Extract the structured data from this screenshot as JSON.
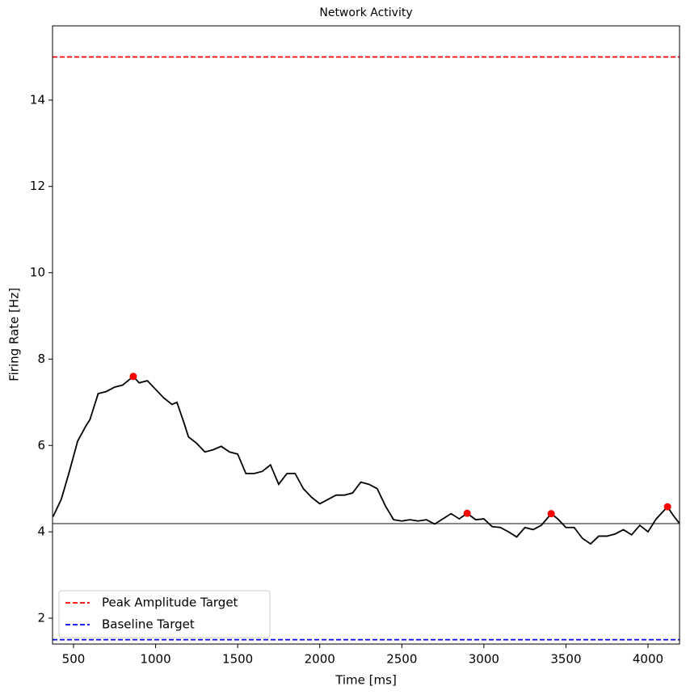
{
  "chart_data": {
    "type": "line",
    "title": "Network Activity",
    "x_label": "Time [ms]",
    "y_label": "Firing Rate [Hz]",
    "xlim": [
      372,
      4192
    ],
    "ylim": [
      1.4,
      15.72
    ],
    "xticks": [
      500,
      1000,
      1500,
      2000,
      2500,
      3000,
      3500,
      4000
    ],
    "yticks": [
      2,
      4,
      6,
      8,
      10,
      12,
      14
    ],
    "x": [
      375,
      425,
      475,
      525,
      575,
      600,
      650,
      700,
      750,
      800,
      864,
      900,
      950,
      1000,
      1050,
      1100,
      1130,
      1175,
      1200,
      1250,
      1300,
      1350,
      1400,
      1450,
      1500,
      1550,
      1600,
      1650,
      1700,
      1750,
      1800,
      1850,
      1900,
      1950,
      2000,
      2050,
      2100,
      2150,
      2200,
      2250,
      2300,
      2350,
      2400,
      2450,
      2500,
      2550,
      2600,
      2650,
      2700,
      2750,
      2800,
      2850,
      2898,
      2950,
      3000,
      3050,
      3100,
      3150,
      3200,
      3250,
      3300,
      3350,
      3410,
      3450,
      3500,
      3550,
      3600,
      3650,
      3700,
      3750,
      3800,
      3850,
      3900,
      3950,
      4000,
      4050,
      4119,
      4150,
      4190
    ],
    "series": [
      {
        "color": "#000000",
        "values": [
          4.35,
          4.75,
          5.4,
          6.1,
          6.45,
          6.6,
          7.2,
          7.25,
          7.35,
          7.4,
          7.6,
          7.45,
          7.5,
          7.3,
          7.1,
          6.95,
          7.0,
          6.5,
          6.2,
          6.05,
          5.85,
          5.9,
          5.98,
          5.85,
          5.8,
          5.35,
          5.35,
          5.4,
          5.55,
          5.1,
          5.35,
          5.35,
          5.0,
          4.8,
          4.65,
          4.75,
          4.85,
          4.85,
          4.9,
          5.15,
          5.1,
          5.0,
          4.6,
          4.28,
          4.25,
          4.28,
          4.25,
          4.28,
          4.18,
          4.3,
          4.42,
          4.3,
          4.43,
          4.28,
          4.3,
          4.12,
          4.1,
          4.0,
          3.88,
          4.1,
          4.05,
          4.15,
          4.42,
          4.3,
          4.1,
          4.1,
          3.85,
          3.72,
          3.9,
          3.9,
          3.95,
          4.05,
          3.93,
          4.15,
          4.0,
          4.3,
          4.58,
          4.4,
          4.2
        ]
      }
    ],
    "points": {
      "color": "#ff0000",
      "x": [
        864,
        2898,
        3410,
        4119
      ],
      "y": [
        7.6,
        4.43,
        4.42,
        4.58
      ]
    },
    "reference_lines": [
      {
        "name": "Peak Amplitude Target",
        "value": 15,
        "color": "#ff0000",
        "dashed": true
      },
      {
        "name": "Baseline Target",
        "value": 1.5,
        "color": "#0000ff",
        "dashed": true
      },
      {
        "value": 4.19,
        "color": "#808080",
        "dashed": false
      }
    ],
    "legend": "lower left"
  }
}
